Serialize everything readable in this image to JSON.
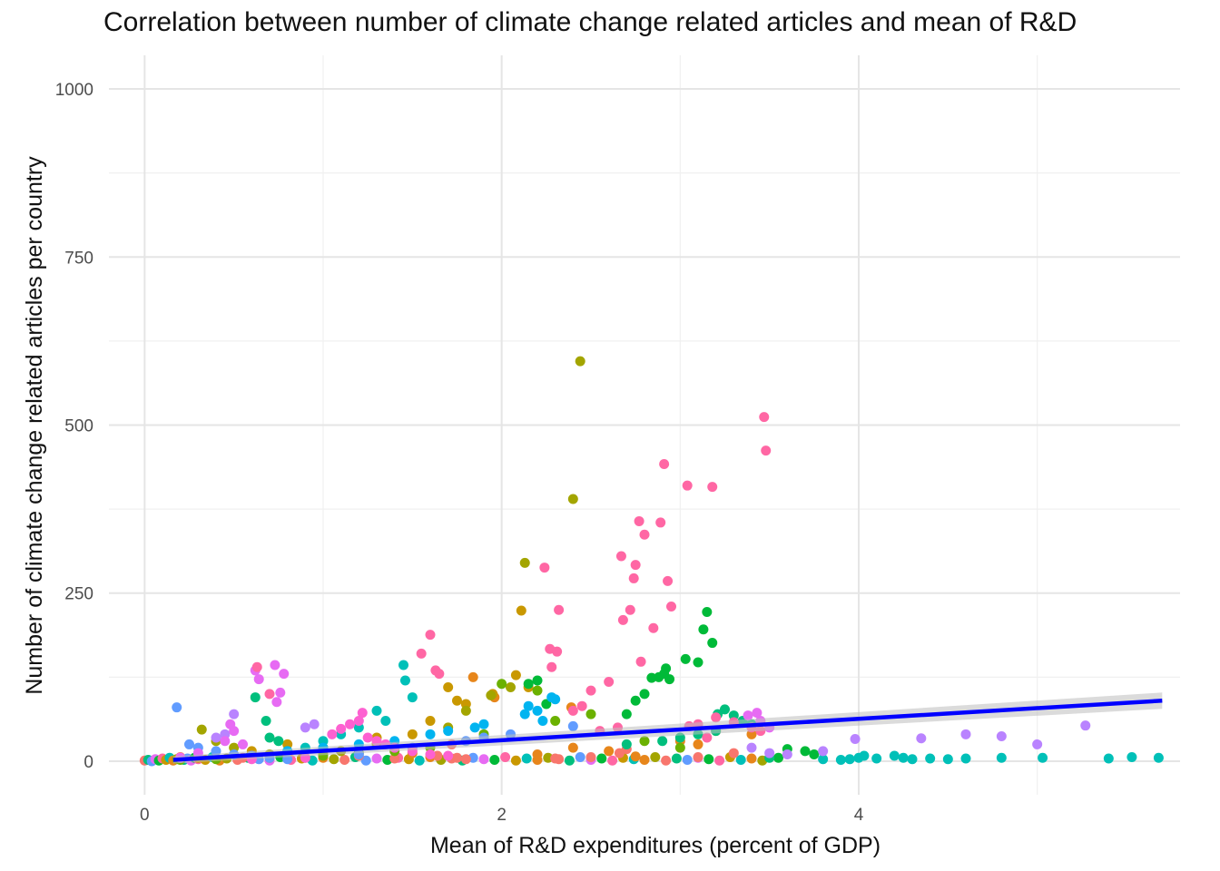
{
  "chart_data": {
    "type": "scatter",
    "title": "Correlation between number of climate change related articles and mean of R&D",
    "xlabel": "Mean of R&D expenditures (percent of GDP)",
    "ylabel": "Number of climate change related articles per country",
    "xlim": [
      -0.2,
      5.8
    ],
    "ylim": [
      -50,
      1050
    ],
    "x_ticks": [
      0,
      2,
      4
    ],
    "y_ticks": [
      0,
      250,
      500,
      750,
      1000
    ],
    "grid": true,
    "legend": "none",
    "trend_line": {
      "x": [
        0.16,
        5.7
      ],
      "y": [
        2,
        90
      ],
      "color": "#0000ff",
      "band_color": "#bebebe"
    },
    "series": [
      {
        "color": "#f8766d",
        "points": [
          [
            1.64,
            8
          ],
          [
            1.72,
            25
          ],
          [
            1.75,
            5
          ],
          [
            1.8,
            3
          ],
          [
            2.3,
            4
          ],
          [
            2.5,
            6
          ],
          [
            2.66,
            12
          ],
          [
            2.7,
            18
          ],
          [
            3.1,
            6
          ],
          [
            3.3,
            12
          ],
          [
            0.55,
            5
          ],
          [
            0.8,
            10
          ],
          [
            1.2,
            8
          ],
          [
            1.4,
            4
          ]
        ]
      },
      {
        "color": "#e7861b",
        "points": [
          [
            1.84,
            125
          ],
          [
            2.39,
            80
          ],
          [
            1.96,
            95
          ],
          [
            2.4,
            20
          ],
          [
            2.2,
            10
          ],
          [
            2.6,
            15
          ],
          [
            2.75,
            7
          ],
          [
            3.0,
            30
          ],
          [
            3.1,
            25
          ],
          [
            3.4,
            40
          ],
          [
            3.2,
            45
          ],
          [
            1.5,
            12
          ],
          [
            1.0,
            10
          ],
          [
            0.9,
            5
          ]
        ]
      },
      {
        "color": "#c99800",
        "points": [
          [
            2.08,
            128
          ],
          [
            2.15,
            110
          ],
          [
            2.11,
            224
          ],
          [
            1.95,
            100
          ],
          [
            1.8,
            85
          ],
          [
            1.7,
            110
          ],
          [
            1.75,
            90
          ],
          [
            1.6,
            60
          ],
          [
            1.5,
            40
          ],
          [
            1.3,
            35
          ],
          [
            1.0,
            20
          ],
          [
            0.8,
            25
          ],
          [
            0.6,
            15
          ],
          [
            0.3,
            5
          ]
        ]
      },
      {
        "color": "#a3a500",
        "points": [
          [
            2.44,
            595
          ],
          [
            2.4,
            390
          ],
          [
            2.13,
            295
          ],
          [
            1.94,
            98
          ],
          [
            2.05,
            110
          ],
          [
            1.8,
            75
          ],
          [
            1.7,
            50
          ],
          [
            0.32,
            47
          ],
          [
            0.4,
            30
          ],
          [
            0.5,
            20
          ],
          [
            0.7,
            10
          ],
          [
            1.1,
            15
          ],
          [
            1.3,
            25
          ],
          [
            1.4,
            20
          ]
        ]
      },
      {
        "color": "#6bb100",
        "points": [
          [
            2.0,
            115
          ],
          [
            2.2,
            105
          ],
          [
            2.5,
            70
          ],
          [
            2.3,
            60
          ],
          [
            1.9,
            40
          ],
          [
            1.6,
            20
          ],
          [
            1.4,
            15
          ],
          [
            1.2,
            12
          ],
          [
            1.0,
            8
          ],
          [
            0.7,
            5
          ],
          [
            0.4,
            3
          ],
          [
            0.2,
            2
          ],
          [
            2.8,
            30
          ],
          [
            3.0,
            20
          ]
        ]
      },
      {
        "color": "#00ba38",
        "points": [
          [
            3.15,
            222
          ],
          [
            3.13,
            196
          ],
          [
            3.18,
            176
          ],
          [
            3.03,
            152
          ],
          [
            3.1,
            147
          ],
          [
            2.92,
            138
          ],
          [
            2.84,
            124
          ],
          [
            2.88,
            125
          ],
          [
            2.91,
            130
          ],
          [
            2.94,
            122
          ],
          [
            2.8,
            100
          ],
          [
            2.75,
            90
          ],
          [
            2.7,
            70
          ],
          [
            3.6,
            18
          ],
          [
            3.7,
            15
          ],
          [
            3.75,
            10
          ],
          [
            3.55,
            5
          ],
          [
            2.2,
            120
          ],
          [
            2.15,
            115
          ],
          [
            2.25,
            85
          ]
        ]
      },
      {
        "color": "#00bf7d",
        "points": [
          [
            3.25,
            77
          ],
          [
            3.21,
            70
          ],
          [
            3.3,
            68
          ],
          [
            3.35,
            60
          ],
          [
            3.4,
            55
          ],
          [
            3.2,
            45
          ],
          [
            3.1,
            40
          ],
          [
            3.0,
            35
          ],
          [
            2.9,
            30
          ],
          [
            2.7,
            25
          ],
          [
            0.62,
            95
          ],
          [
            0.68,
            60
          ],
          [
            0.7,
            35
          ],
          [
            0.75,
            30
          ],
          [
            3.5,
            5
          ]
        ]
      },
      {
        "color": "#00c0b8",
        "points": [
          [
            1.45,
            143
          ],
          [
            1.46,
            120
          ],
          [
            1.5,
            95
          ],
          [
            1.3,
            75
          ],
          [
            1.35,
            60
          ],
          [
            1.2,
            50
          ],
          [
            1.1,
            40
          ],
          [
            1.0,
            30
          ],
          [
            0.9,
            20
          ],
          [
            0.8,
            15
          ],
          [
            3.8,
            3
          ],
          [
            3.9,
            2
          ],
          [
            4.0,
            5
          ],
          [
            4.1,
            4
          ],
          [
            4.2,
            8
          ],
          [
            4.25,
            5
          ],
          [
            4.3,
            3
          ],
          [
            4.4,
            4
          ],
          [
            4.5,
            3
          ],
          [
            4.6,
            4
          ],
          [
            4.8,
            5
          ],
          [
            5.03,
            5
          ],
          [
            5.4,
            4
          ],
          [
            5.53,
            6
          ],
          [
            5.68,
            5
          ],
          [
            4.03,
            8
          ],
          [
            3.95,
            3
          ]
        ]
      },
      {
        "color": "#00b4f0",
        "points": [
          [
            2.15,
            82
          ],
          [
            2.2,
            75
          ],
          [
            2.13,
            70
          ],
          [
            2.23,
            60
          ],
          [
            2.28,
            95
          ],
          [
            2.3,
            92
          ],
          [
            1.9,
            55
          ],
          [
            1.85,
            50
          ],
          [
            1.7,
            45
          ],
          [
            1.6,
            40
          ],
          [
            1.4,
            30
          ],
          [
            1.2,
            25
          ],
          [
            1.0,
            20
          ],
          [
            0.8,
            15
          ]
        ]
      },
      {
        "color": "#619cff",
        "points": [
          [
            0.18,
            80
          ],
          [
            0.25,
            25
          ],
          [
            0.3,
            20
          ],
          [
            0.4,
            15
          ],
          [
            0.5,
            10
          ],
          [
            0.6,
            8
          ],
          [
            0.7,
            5
          ],
          [
            0.8,
            3
          ],
          [
            2.4,
            52
          ],
          [
            2.05,
            40
          ],
          [
            1.9,
            35
          ],
          [
            1.8,
            30
          ],
          [
            1.5,
            20
          ],
          [
            1.2,
            10
          ]
        ]
      },
      {
        "color": "#b983ff",
        "points": [
          [
            3.98,
            33
          ],
          [
            4.35,
            34
          ],
          [
            4.6,
            40
          ],
          [
            4.8,
            37
          ],
          [
            5.0,
            25
          ],
          [
            5.27,
            53
          ],
          [
            3.8,
            15
          ],
          [
            3.6,
            10
          ],
          [
            3.5,
            12
          ],
          [
            3.4,
            20
          ],
          [
            0.95,
            55
          ],
          [
            0.9,
            50
          ],
          [
            0.5,
            70
          ],
          [
            0.45,
            40
          ],
          [
            0.4,
            35
          ]
        ]
      },
      {
        "color": "#e76bf3",
        "points": [
          [
            0.62,
            135
          ],
          [
            0.73,
            143
          ],
          [
            0.78,
            130
          ],
          [
            0.64,
            122
          ],
          [
            0.76,
            102
          ],
          [
            0.74,
            88
          ],
          [
            0.48,
            55
          ],
          [
            0.5,
            45
          ],
          [
            0.45,
            30
          ],
          [
            0.55,
            25
          ],
          [
            3.5,
            50
          ],
          [
            3.43,
            72
          ],
          [
            3.38,
            68
          ],
          [
            3.45,
            60
          ],
          [
            0.3,
            12
          ],
          [
            0.2,
            5
          ]
        ]
      },
      {
        "color": "#fd61d1",
        "points": [
          [
            1.22,
            72
          ],
          [
            1.2,
            60
          ],
          [
            1.15,
            55
          ],
          [
            1.1,
            48
          ],
          [
            1.05,
            40
          ],
          [
            1.25,
            35
          ],
          [
            1.3,
            30
          ],
          [
            1.35,
            25
          ],
          [
            1.4,
            20
          ],
          [
            1.5,
            15
          ],
          [
            1.6,
            10
          ],
          [
            1.7,
            8
          ],
          [
            0.9,
            5
          ],
          [
            0.6,
            3
          ]
        ]
      },
      {
        "color": "#ff67a4",
        "points": [
          [
            3.47,
            512
          ],
          [
            3.48,
            462
          ],
          [
            2.91,
            442
          ],
          [
            3.04,
            410
          ],
          [
            3.18,
            408
          ],
          [
            2.77,
            357
          ],
          [
            2.89,
            355
          ],
          [
            2.8,
            337
          ],
          [
            2.67,
            305
          ],
          [
            2.75,
            292
          ],
          [
            2.74,
            272
          ],
          [
            2.93,
            268
          ],
          [
            2.32,
            225
          ],
          [
            2.27,
            167
          ],
          [
            2.24,
            288
          ],
          [
            2.72,
            225
          ],
          [
            2.68,
            210
          ],
          [
            2.95,
            230
          ],
          [
            2.85,
            198
          ],
          [
            2.78,
            148
          ],
          [
            2.28,
            140
          ],
          [
            2.31,
            163
          ],
          [
            1.6,
            188
          ],
          [
            1.55,
            160
          ],
          [
            1.63,
            135
          ],
          [
            2.6,
            118
          ],
          [
            2.5,
            105
          ],
          [
            2.45,
            82
          ],
          [
            2.4,
            75
          ],
          [
            1.65,
            130
          ],
          [
            0.63,
            140
          ],
          [
            0.7,
            100
          ],
          [
            2.65,
            50
          ],
          [
            2.55,
            45
          ],
          [
            3.05,
            52
          ],
          [
            3.2,
            65
          ],
          [
            3.1,
            55
          ],
          [
            3.3,
            58
          ],
          [
            3.4,
            50
          ],
          [
            3.45,
            45
          ],
          [
            3.15,
            35
          ]
        ]
      }
    ],
    "baseline_points": [
      [
        0.0,
        1
      ],
      [
        0.02,
        2
      ],
      [
        0.04,
        0
      ],
      [
        0.06,
        3
      ],
      [
        0.08,
        1
      ],
      [
        0.1,
        4
      ],
      [
        0.12,
        2
      ],
      [
        0.14,
        5
      ],
      [
        0.16,
        1
      ],
      [
        0.18,
        3
      ],
      [
        0.2,
        6
      ],
      [
        0.22,
        2
      ],
      [
        0.24,
        4
      ],
      [
        0.26,
        1
      ],
      [
        0.28,
        5
      ],
      [
        0.3,
        3
      ],
      [
        0.34,
        2
      ],
      [
        0.38,
        6
      ],
      [
        0.42,
        1
      ],
      [
        0.46,
        4
      ],
      [
        0.52,
        2
      ],
      [
        0.58,
        5
      ],
      [
        0.64,
        3
      ],
      [
        0.7,
        1
      ],
      [
        0.76,
        6
      ],
      [
        0.82,
        2
      ],
      [
        0.88,
        4
      ],
      [
        0.94,
        1
      ],
      [
        1.0,
        5
      ],
      [
        1.06,
        3
      ],
      [
        1.12,
        2
      ],
      [
        1.18,
        6
      ],
      [
        1.24,
        1
      ],
      [
        1.3,
        4
      ],
      [
        1.36,
        2
      ],
      [
        1.42,
        5
      ],
      [
        1.48,
        3
      ],
      [
        1.54,
        1
      ],
      [
        1.6,
        6
      ],
      [
        1.66,
        2
      ],
      [
        1.72,
        4
      ],
      [
        1.78,
        1
      ],
      [
        1.84,
        5
      ],
      [
        1.9,
        3
      ],
      [
        1.96,
        2
      ],
      [
        2.02,
        6
      ],
      [
        2.08,
        1
      ],
      [
        2.14,
        4
      ],
      [
        2.2,
        2
      ],
      [
        2.26,
        5
      ],
      [
        2.32,
        3
      ],
      [
        2.38,
        1
      ],
      [
        2.44,
        6
      ],
      [
        2.5,
        2
      ],
      [
        2.56,
        4
      ],
      [
        2.62,
        1
      ],
      [
        2.68,
        5
      ],
      [
        2.74,
        3
      ],
      [
        2.8,
        2
      ],
      [
        2.86,
        6
      ],
      [
        2.92,
        1
      ],
      [
        2.98,
        4
      ],
      [
        3.04,
        2
      ],
      [
        3.1,
        5
      ],
      [
        3.16,
        3
      ],
      [
        3.22,
        1
      ],
      [
        3.28,
        6
      ],
      [
        3.34,
        2
      ],
      [
        3.4,
        4
      ],
      [
        3.46,
        1
      ]
    ],
    "baseline_colors": [
      "#f8766d",
      "#00bf7d",
      "#619cff",
      "#e76bf3",
      "#00ba38",
      "#ff67a4",
      "#c99800",
      "#00c0b8",
      "#e7861b",
      "#a3a500"
    ]
  }
}
